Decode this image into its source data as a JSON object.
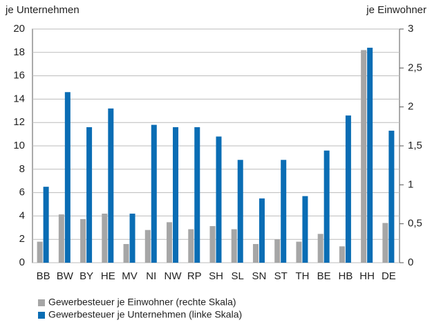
{
  "chart_data": {
    "type": "bar",
    "y_label": "je Unternehmen",
    "y2_label": "je Einwohner",
    "categories": [
      "BB",
      "BW",
      "BY",
      "HE",
      "MV",
      "NI",
      "NW",
      "RP",
      "SH",
      "SL",
      "SN",
      "ST",
      "TH",
      "BE",
      "HB",
      "HH",
      "DE"
    ],
    "series": [
      {
        "name": "Gewerbesteuer je Einwohner (rechte Skala)",
        "color": "#a6a6a6",
        "axis": "y2",
        "values": [
          0.27,
          0.62,
          0.56,
          0.63,
          0.24,
          0.42,
          0.52,
          0.43,
          0.47,
          0.43,
          0.24,
          0.3,
          0.27,
          0.37,
          0.21,
          2.73,
          0.51
        ]
      },
      {
        "name": "Gewerbesteuer je Unternehmen (linke Skala)",
        "color": "#0a6db4",
        "values": [
          6.5,
          14.6,
          11.6,
          13.2,
          4.2,
          11.8,
          11.6,
          11.6,
          10.8,
          8.8,
          5.5,
          8.8,
          5.7,
          9.6,
          12.6,
          18.4,
          11.3
        ]
      }
    ],
    "ylim": [
      0,
      20
    ],
    "yticks": [
      0,
      2,
      4,
      6,
      8,
      10,
      12,
      14,
      16,
      18,
      20
    ],
    "y2lim": [
      0,
      3
    ],
    "y2ticks": [
      0,
      {
        "value": 0.5,
        "label": "0,5"
      },
      1,
      {
        "value": 1.5,
        "label": "1,5"
      },
      2,
      {
        "value": 2.5,
        "label": "2,5"
      },
      3
    ],
    "grid": true,
    "legend": "bottom"
  }
}
